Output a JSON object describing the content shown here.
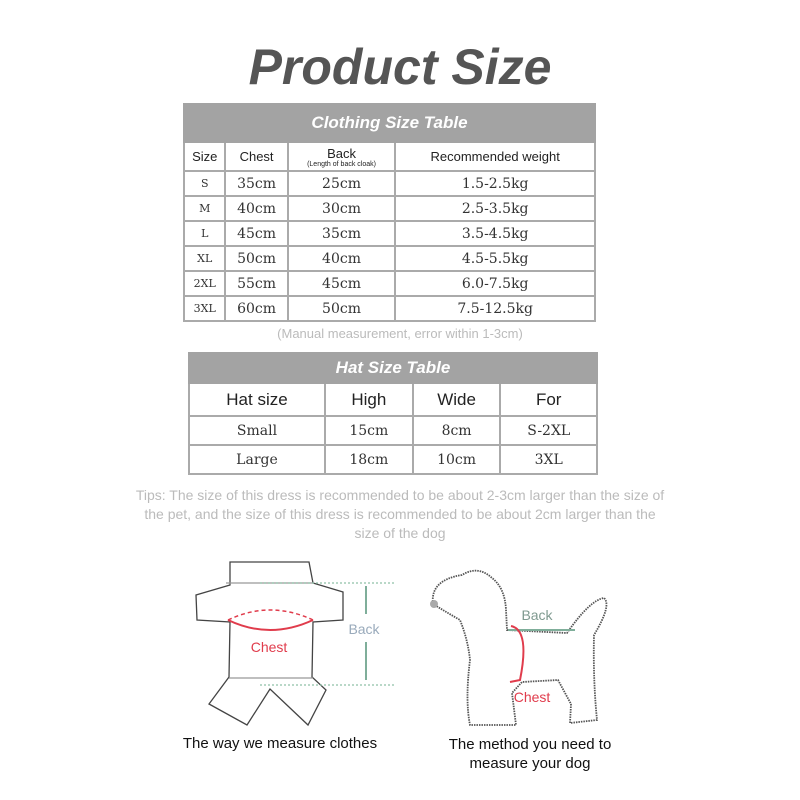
{
  "title": "Product Size",
  "clothing_table": {
    "caption": "Clothing Size Table",
    "headers": [
      "Size",
      "Chest",
      "Back",
      "Recommended weight"
    ],
    "back_subheader": "(Length of back cloak)",
    "rows": [
      [
        "S",
        "35cm",
        "25cm",
        "1.5-2.5kg"
      ],
      [
        "M",
        "40cm",
        "30cm",
        "2.5-3.5kg"
      ],
      [
        "L",
        "45cm",
        "35cm",
        "3.5-4.5kg"
      ],
      [
        "XL",
        "50cm",
        "40cm",
        "4.5-5.5kg"
      ],
      [
        "2XL",
        "55cm",
        "45cm",
        "6.0-7.5kg"
      ],
      [
        "3XL",
        "60cm",
        "50cm",
        "7.5-12.5kg"
      ]
    ]
  },
  "measurement_note": "(Manual measurement, error within 1-3cm)",
  "hat_table": {
    "caption": "Hat Size Table",
    "headers": [
      "Hat size",
      "High",
      "Wide",
      "For"
    ],
    "rows": [
      [
        "Small",
        "15cm",
        "8cm",
        "S-2XL"
      ],
      [
        "Large",
        "18cm",
        "10cm",
        "3XL"
      ]
    ]
  },
  "tips": "Tips: The size of this dress is recommended to be about 2-3cm larger than the size of the pet, and the size of this dress is recommended to be about 2cm larger than the size of the dog",
  "diagrams": {
    "clothes": {
      "chest_label": "Chest",
      "back_label": "Back",
      "caption": "The way we measure clothes"
    },
    "dog": {
      "chest_label": "Chest",
      "back_label": "Back",
      "caption_line1": "The method you need to",
      "caption_line2": "measure your dog"
    }
  },
  "colors": {
    "header_bg": "#a3a3a3",
    "chest": "#e03c4c",
    "back": "#7fae9a",
    "muted_text": "#bbbbbb"
  }
}
